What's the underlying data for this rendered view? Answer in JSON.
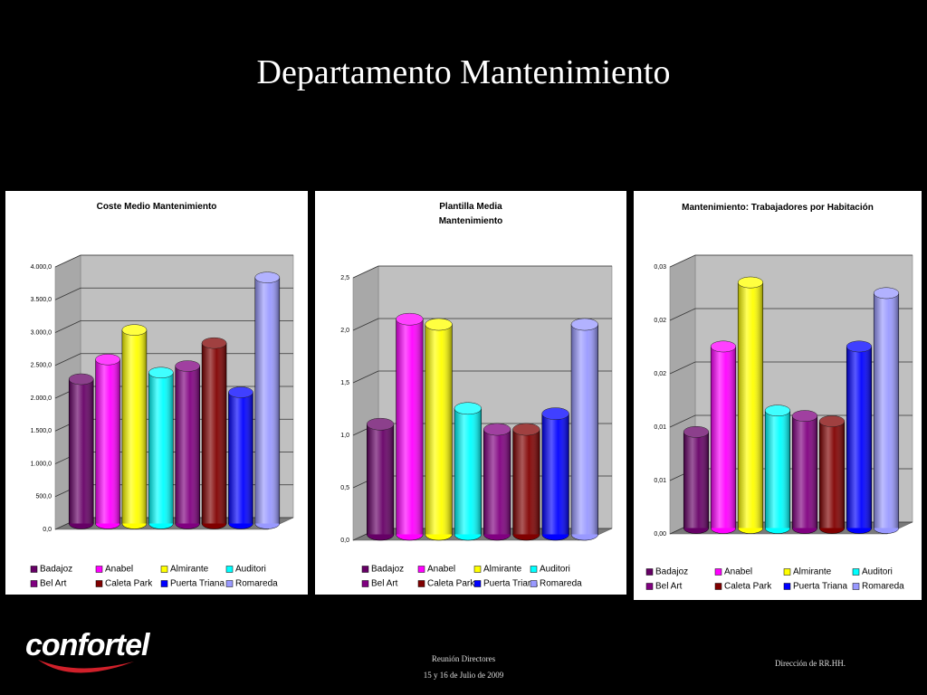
{
  "slide": {
    "title": "Departamento Mantenimiento",
    "logo": "confortel",
    "footer_center": [
      "Reunión Directores",
      "15 y 16 de Julio de 2009"
    ],
    "footer_right": "Dirección de RR.HH."
  },
  "chart_data": [
    {
      "type": "bar",
      "title": "Coste Medio Mantenimiento",
      "categories": [
        "Badajoz",
        "Anabel",
        "Almirante",
        "Auditori",
        "Bel Art",
        "Caleta Park",
        "Puerta Triana",
        "Romareda"
      ],
      "colors": [
        "#660066",
        "#ff00ff",
        "#ffff00",
        "#00ffff",
        "#800080",
        "#800000",
        "#0000ff",
        "#9999ff"
      ],
      "values": [
        2200,
        2500,
        2950,
        2300,
        2400,
        2750,
        2000,
        3750
      ],
      "ylim": [
        0,
        4000
      ],
      "yticks": [
        {
          "value": 0,
          "label": "0,0"
        },
        {
          "value": 500,
          "label": "500,0"
        },
        {
          "value": 1000,
          "label": "1.000,0"
        },
        {
          "value": 1500,
          "label": "1.500,0"
        },
        {
          "value": 2000,
          "label": "2.000,0"
        },
        {
          "value": 2500,
          "label": "2.500,0"
        },
        {
          "value": 3000,
          "label": "3.000,0"
        },
        {
          "value": 3500,
          "label": "3.500,0"
        },
        {
          "value": 4000,
          "label": "4.000,0"
        }
      ],
      "grid": true
    },
    {
      "type": "bar",
      "title": "Plantilla Media Mantenimiento",
      "categories": [
        "Badajoz",
        "Anabel",
        "Almirante",
        "Auditori",
        "Bel Art",
        "Caleta Park",
        "Puerta Triana",
        "Romareda"
      ],
      "colors": [
        "#660066",
        "#ff00ff",
        "#ffff00",
        "#00ffff",
        "#800080",
        "#800000",
        "#0000ff",
        "#9999ff"
      ],
      "values": [
        1.05,
        2.05,
        2.0,
        1.2,
        1.0,
        1.0,
        1.15,
        2.0
      ],
      "ylim": [
        0,
        2.5
      ],
      "yticks": [
        {
          "value": 0,
          "label": "0,0"
        },
        {
          "value": 0.5,
          "label": "0,5"
        },
        {
          "value": 1,
          "label": "1,0"
        },
        {
          "value": 1.5,
          "label": "1,5"
        },
        {
          "value": 2,
          "label": "2,0"
        },
        {
          "value": 2.5,
          "label": "2,5"
        }
      ],
      "grid": true
    },
    {
      "type": "bar",
      "title": "Mantenimiento: Trabajadores por Habitación",
      "categories": [
        "Badajoz",
        "Anabel",
        "Almirante",
        "Auditori",
        "Bel Art",
        "Caleta Park",
        "Puerta Triana",
        "Romareda"
      ],
      "colors": [
        "#660066",
        "#ff00ff",
        "#ffff00",
        "#00ffff",
        "#800080",
        "#800000",
        "#0000ff",
        "#9999ff"
      ],
      "values": [
        0.009,
        0.017,
        0.023,
        0.011,
        0.0105,
        0.01,
        0.017,
        0.022
      ],
      "ylim": [
        0,
        0.025
      ],
      "yticks": [
        {
          "value": 0,
          "label": "0,00"
        },
        {
          "value": 0.005,
          "label": "0,01"
        },
        {
          "value": 0.01,
          "label": "0,01"
        },
        {
          "value": 0.015,
          "label": "0,02"
        },
        {
          "value": 0.02,
          "label": "0,02"
        },
        {
          "value": 0.025,
          "label": "0,03"
        }
      ],
      "grid": true
    }
  ]
}
